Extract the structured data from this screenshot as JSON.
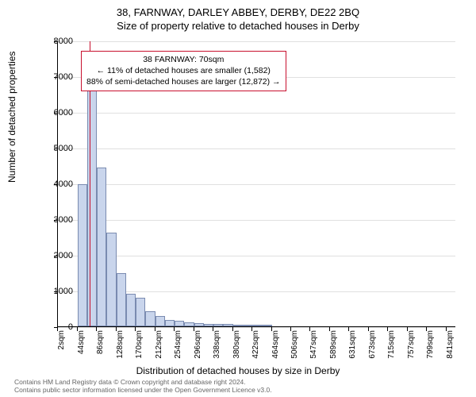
{
  "title_main": "38, FARNWAY, DARLEY ABBEY, DERBY, DE22 2BQ",
  "title_sub": "Size of property relative to detached houses in Derby",
  "y_axis_label": "Number of detached properties",
  "x_axis_label": "Distribution of detached houses by size in Derby",
  "chart": {
    "type": "histogram",
    "background_color": "#ffffff",
    "grid_color": "#e0e0e0",
    "axis_color": "#000000",
    "bar_fill": "#c9d5ec",
    "bar_stroke": "#7a8bb0",
    "marker_color": "#c8102e",
    "annotation_border": "#c8102e",
    "ylim": [
      0,
      8000
    ],
    "ytick_step": 1000,
    "y_ticks": [
      0,
      1000,
      2000,
      3000,
      4000,
      5000,
      6000,
      7000,
      8000
    ],
    "x_min": 2,
    "x_max": 862,
    "x_ticks": [
      2,
      44,
      86,
      128,
      170,
      212,
      254,
      296,
      338,
      380,
      422,
      464,
      506,
      547,
      589,
      631,
      673,
      715,
      757,
      799,
      841
    ],
    "x_tick_unit": "sqm",
    "bin_width_sqm": 21,
    "marker_sqm": 70,
    "bars": [
      {
        "x_start": 44,
        "value": 3980
      },
      {
        "x_start": 65,
        "value": 6650
      },
      {
        "x_start": 86,
        "value": 4450
      },
      {
        "x_start": 107,
        "value": 2620
      },
      {
        "x_start": 128,
        "value": 1500
      },
      {
        "x_start": 149,
        "value": 920
      },
      {
        "x_start": 170,
        "value": 800
      },
      {
        "x_start": 191,
        "value": 420
      },
      {
        "x_start": 212,
        "value": 290
      },
      {
        "x_start": 233,
        "value": 170
      },
      {
        "x_start": 254,
        "value": 150
      },
      {
        "x_start": 275,
        "value": 110
      },
      {
        "x_start": 296,
        "value": 90
      },
      {
        "x_start": 317,
        "value": 70
      },
      {
        "x_start": 338,
        "value": 60
      },
      {
        "x_start": 359,
        "value": 60
      },
      {
        "x_start": 380,
        "value": 30
      },
      {
        "x_start": 401,
        "value": 20
      },
      {
        "x_start": 422,
        "value": 10
      },
      {
        "x_start": 443,
        "value": 10
      }
    ]
  },
  "annotation": {
    "line1": "38 FARNWAY: 70sqm",
    "line2": "← 11% of detached houses are smaller (1,582)",
    "line3": "88% of semi-detached houses are larger (12,872) →"
  },
  "footer_line1": "Contains HM Land Registry data © Crown copyright and database right 2024.",
  "footer_line2": "Contains public sector information licensed under the Open Government Licence v3.0."
}
